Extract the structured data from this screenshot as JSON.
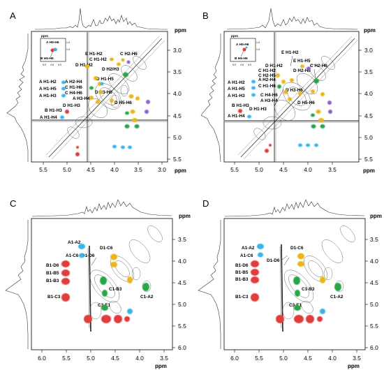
{
  "panels": [
    {
      "id": "A",
      "letter": "A",
      "axis_unit": "ppm",
      "x_ticks": [
        "5.5",
        "5.0",
        "4.5",
        "4.0",
        "3.5",
        "3.0"
      ],
      "y_ticks": [
        "3.0",
        "3.5",
        "4.0",
        "4.5",
        "5.0",
        "5.5"
      ],
      "inset": {
        "unit": "ppm",
        "x_ticks": [
          "5.0",
          "4.5",
          "4.0"
        ],
        "y_ticks": [
          "1.5",
          "1.0"
        ],
        "labels": [
          "A H5-H6",
          "B H5-H6"
        ]
      },
      "labels": [
        "E H1-H2",
        "C H2-H6",
        "C H1-H2",
        "D H1-H2",
        "D H2/H3",
        "D H1-H5",
        "A H1-H2",
        "A H2-H4",
        "A H1-H5",
        "C H1-H6",
        "C H4-H6",
        "A H1-H3",
        "D H3-H6",
        "A H3-H4",
        "D H5-H6",
        "D H1-H3",
        "B H1-H3",
        "A H1-H4"
      ]
    },
    {
      "id": "B",
      "letter": "B",
      "axis_unit": "ppm",
      "x_ticks": [
        "5.5",
        "5.0",
        "4.5",
        "4.0",
        "3.5"
      ],
      "y_ticks": [
        "3.0",
        "3.5",
        "4.0",
        "4.5",
        "5.0",
        "5.5"
      ],
      "inset": {
        "unit": "ppm",
        "x_ticks": [
          "5.0",
          "4.5",
          "4.0"
        ],
        "y_ticks": [
          "1.5",
          "1.0"
        ],
        "labels": [
          "A H5-H6",
          "B H5-H6"
        ]
      },
      "labels": [
        "E H1-H2",
        "E H1-H5",
        "C H2-H6",
        "D H1-H2",
        "C H1-H2",
        "C H2-H5",
        "D H2-H6",
        "A H2-H4",
        "A H1-H2",
        "A H1-H5",
        "C H1-H6",
        "A H1-H3",
        "D H3-H6",
        "C H4-H6",
        "A H3-H4",
        "D H5-H6",
        "B H1-H3",
        "D H1-H3",
        "A H1-H4"
      ]
    },
    {
      "id": "C",
      "letter": "C",
      "axis_unit": "ppm",
      "x_ticks": [
        "6.0",
        "5.5",
        "5.0",
        "4.5",
        "4.0",
        "3.5"
      ],
      "y_ticks": [
        "3.5",
        "4.0",
        "4.5",
        "5.0",
        "5.5",
        "6.0"
      ],
      "labels": [
        "A1-A2",
        "A1-C6",
        "D1-C6",
        "D1-D6",
        "B1-D6",
        "B1-B5",
        "B1-B3",
        "C1-B3",
        "C1-A2",
        "B1-C3",
        "C3-E1"
      ]
    },
    {
      "id": "D",
      "letter": "D",
      "axis_unit": "ppm",
      "x_ticks": [
        "6.0",
        "5.5",
        "5.0",
        "4.5",
        "4.0",
        "3.5"
      ],
      "y_ticks": [
        "3.5",
        "4.0",
        "4.5",
        "5.0",
        "5.5",
        "6.0"
      ],
      "labels": [
        "A1-A2",
        "A1-C6",
        "D1-C6",
        "D1-D6",
        "B1-D6",
        "B1-B5",
        "B1-B3",
        "C1-B3",
        "C1-A2",
        "B1-C3",
        "C3-E1"
      ]
    }
  ],
  "colors": {
    "cyan": "#38b6e8",
    "red": "#e03c3c",
    "green": "#2aa64a",
    "yellow": "#e9b61b",
    "purple": "#8b63c9",
    "contour": "#8a8a8a"
  }
}
